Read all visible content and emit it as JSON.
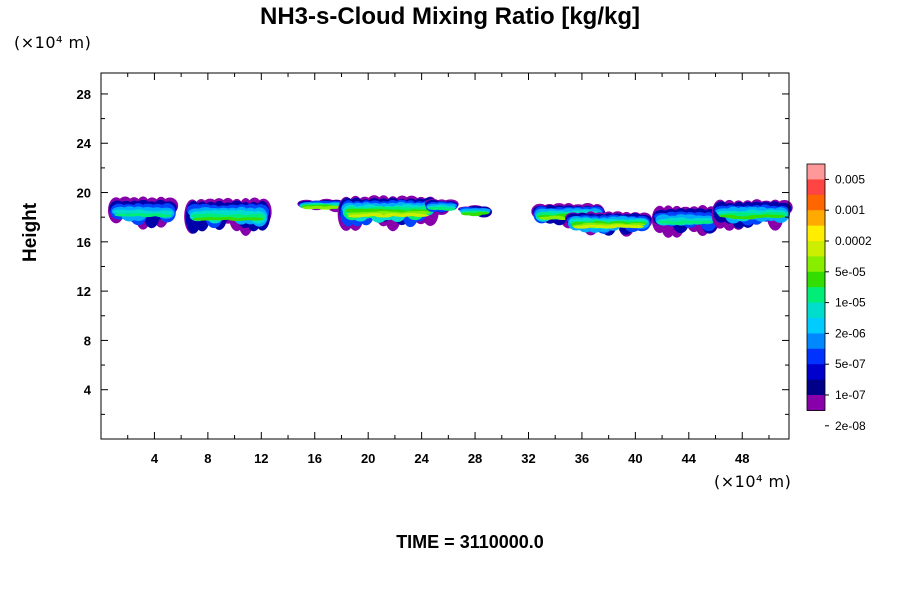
{
  "chart_data": {
    "type": "heatmap",
    "title": "NH3-s-Cloud Mixing Ratio [kg/kg]",
    "xlabel": "",
    "ylabel": "Height",
    "x_unit": "(×10⁴ m)",
    "y_unit": "(×10⁴ m)",
    "xlim": [
      0,
      51.5
    ],
    "ylim": [
      0,
      29.7
    ],
    "x_ticks": [
      4,
      8,
      12,
      16,
      20,
      24,
      28,
      32,
      36,
      40,
      44,
      48
    ],
    "y_ticks": [
      4,
      8,
      12,
      16,
      20,
      24,
      28
    ],
    "footer": "TIME = 3110000.0",
    "colorbar": {
      "labels": [
        "0.005",
        "0.001",
        "0.0002",
        "5e-05",
        "1e-05",
        "2e-06",
        "5e-07",
        "1e-07",
        "2e-08"
      ],
      "colors": [
        "#ff9999",
        "#ff4444",
        "#ff6600",
        "#ffaa00",
        "#ffee00",
        "#ccee00",
        "#88ee00",
        "#33dd00",
        "#00ee77",
        "#00ddcc",
        "#00ccff",
        "#0088ff",
        "#0033ff",
        "#0000cc",
        "#000088",
        "#8800aa"
      ]
    },
    "cloud_layers": [
      {
        "x_start": 0.8,
        "x_end": 5.5,
        "y_bottom": 16.8,
        "y_top": 19.7
      },
      {
        "x_start": 6.5,
        "x_end": 12.5,
        "y_bottom": 16.4,
        "y_top": 19.6
      },
      {
        "x_start": 15.0,
        "x_end": 18.0,
        "y_bottom": 18.4,
        "y_top": 19.5
      },
      {
        "x_start": 18.0,
        "x_end": 25.0,
        "y_bottom": 16.8,
        "y_top": 19.8
      },
      {
        "x_start": 24.5,
        "x_end": 26.5,
        "y_bottom": 18.0,
        "y_top": 19.6
      },
      {
        "x_start": 27.0,
        "x_end": 29.0,
        "y_bottom": 17.9,
        "y_top": 19.0
      },
      {
        "x_start": 32.5,
        "x_end": 37.5,
        "y_bottom": 17.0,
        "y_top": 19.2
      },
      {
        "x_start": 35.0,
        "x_end": 41.0,
        "y_bottom": 16.3,
        "y_top": 18.5
      },
      {
        "x_start": 41.5,
        "x_end": 46.0,
        "y_bottom": 16.3,
        "y_top": 19.0
      },
      {
        "x_start": 46.0,
        "x_end": 51.5,
        "y_bottom": 16.8,
        "y_top": 19.5
      }
    ]
  }
}
